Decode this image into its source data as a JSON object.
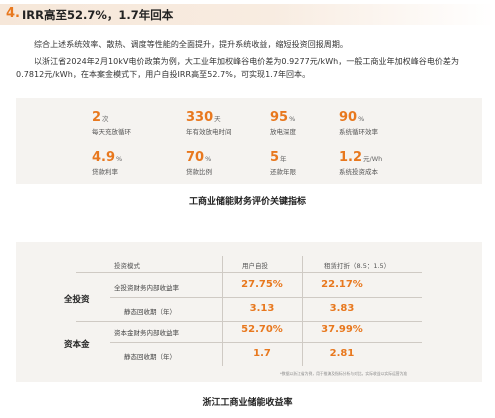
{
  "section": {
    "number": "4.",
    "title": "IRR高至52.7%，1.7年回本"
  },
  "paragraphs": [
    "综合上述系统效率、散热、调度等性能的全面提升，提升系统收益，缩短投资回报周期。",
    "以浙江省2024年2月10kV电价政策为例，大工业年加权峰谷电价差为0.9277元/kWh，一般工商业年加权峰谷电价差为0.7812元/kWh，在本案金模式下，用户自投IRR高至52.7%，可实现1.7年回本。"
  ],
  "metrics": [
    {
      "value": "2",
      "unit": "次",
      "label": "每天充放循环"
    },
    {
      "value": "330",
      "unit": "天",
      "label": "年有效放电时间"
    },
    {
      "value": "95",
      "unit": "%",
      "label": "放电深度"
    },
    {
      "value": "90",
      "unit": "%",
      "label": "系统循环效率"
    },
    {
      "value": "4.9",
      "unit": "%",
      "label": "贷款利率"
    },
    {
      "value": "70",
      "unit": "%",
      "label": "贷款比例"
    },
    {
      "value": "5",
      "unit": "年",
      "label": "还款年限"
    },
    {
      "value": "1.2",
      "unit": "元/Wh",
      "label": "系统投资成本"
    }
  ],
  "caption_metrics": "工商业储能财务评价关键指标",
  "table": {
    "headers": {
      "mode": "投资模式",
      "user": "用户自投",
      "lease": "租赁打折（8.5：1.5）"
    },
    "groups": [
      {
        "name": "全投资",
        "rows": [
          {
            "label": "全投资财务内部收益率",
            "user": "27.75%",
            "lease": "22.17%"
          },
          {
            "label": "静态回收期（年）",
            "user": "3.13",
            "lease": "3.83"
          }
        ]
      },
      {
        "name": "资本金",
        "rows": [
          {
            "label": "资本金财务内部收益率",
            "user": "52.70%",
            "lease": "37.99%"
          },
          {
            "label": "静态回收期（年）",
            "user": "1.7",
            "lease": "2.81"
          }
        ]
      }
    ],
    "footnote": "*数据以浙江省为例，用于推演及指标分析与对比，实际收益以实际运营为准"
  },
  "caption_table": "浙江工商业储能收益率"
}
